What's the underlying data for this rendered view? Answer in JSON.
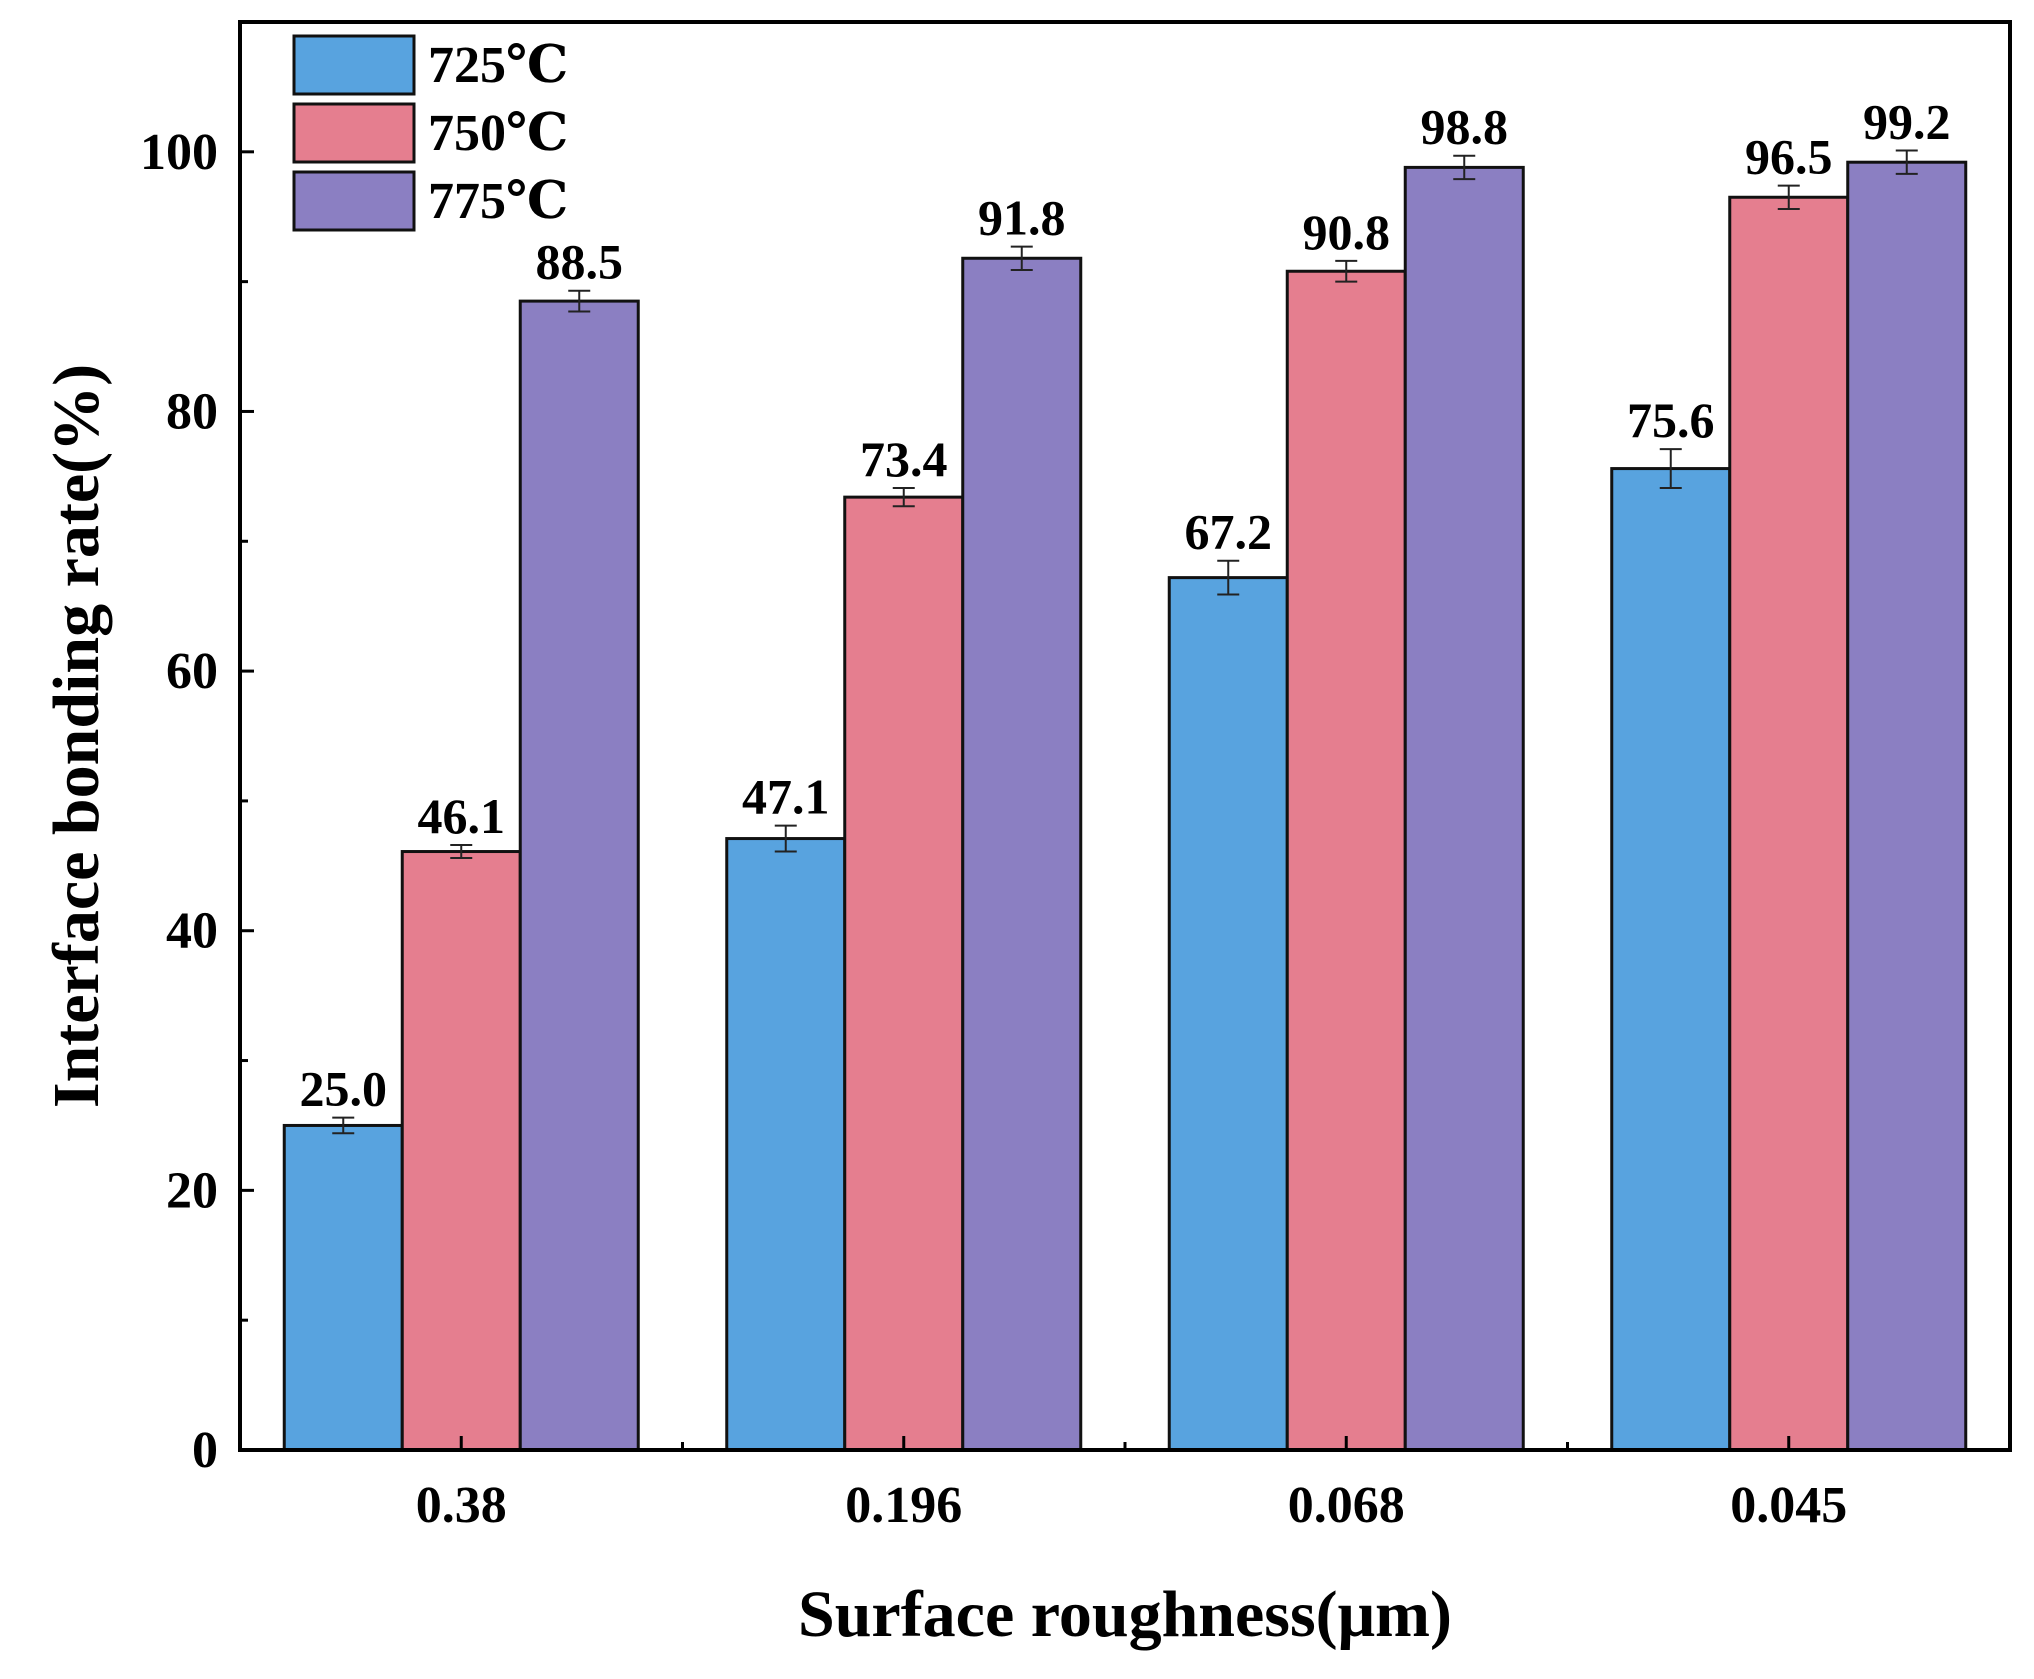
{
  "chart_data": {
    "type": "bar",
    "xlabel": "Surface roughness(μm)",
    "ylabel": "Interface bonding rate(%)",
    "categories": [
      "0.38",
      "0.196",
      "0.068",
      "0.045"
    ],
    "ylim": [
      0,
      110
    ],
    "yticks": [
      "0",
      "20",
      "40",
      "60",
      "80",
      "100"
    ],
    "legend_position": "top-left",
    "error_bars": true,
    "series": [
      {
        "name": "725℃",
        "color": "#58a3df",
        "values": [
          25.0,
          47.1,
          67.2,
          75.6
        ],
        "value_labels": [
          "25.0",
          "47.1",
          "67.2",
          "75.6"
        ],
        "errors": [
          0.6,
          1.0,
          1.3,
          1.5
        ]
      },
      {
        "name": "750℃",
        "color": "#e57e8f",
        "values": [
          46.1,
          73.4,
          90.8,
          96.5
        ],
        "value_labels": [
          "46.1",
          "73.4",
          "90.8",
          "96.5"
        ],
        "errors": [
          0.5,
          0.7,
          0.8,
          0.9
        ]
      },
      {
        "name": "775℃",
        "color": "#8b7fc2",
        "values": [
          88.5,
          91.8,
          98.8,
          99.2
        ],
        "value_labels": [
          "88.5",
          "91.8",
          "98.8",
          "99.2"
        ],
        "errors": [
          0.8,
          0.9,
          0.9,
          0.9
        ]
      }
    ]
  }
}
